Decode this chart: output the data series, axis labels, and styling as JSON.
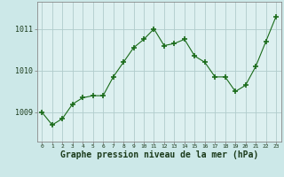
{
  "x": [
    0,
    1,
    2,
    3,
    4,
    5,
    6,
    7,
    8,
    9,
    10,
    11,
    12,
    13,
    14,
    15,
    16,
    17,
    18,
    19,
    20,
    21,
    22,
    23
  ],
  "y": [
    1009.0,
    1008.7,
    1008.85,
    1009.2,
    1009.35,
    1009.4,
    1009.4,
    1009.85,
    1010.2,
    1010.55,
    1010.75,
    1011.0,
    1010.6,
    1010.65,
    1010.75,
    1010.35,
    1010.2,
    1009.85,
    1009.85,
    1009.5,
    1009.65,
    1010.1,
    1010.7,
    1011.3
  ],
  "line_color": "#1a6b1a",
  "marker": "+",
  "marker_size": 4,
  "marker_lw": 1.2,
  "bg_color": "#cce8e8",
  "plot_bg_color": "#ddf0f0",
  "grid_color": "#b0cccc",
  "ylabel_ticks": [
    1009,
    1010,
    1011
  ],
  "xlabel_label": "Graphe pression niveau de la mer (hPa)",
  "xlabel_fontsize": 7.0,
  "ylim": [
    1008.3,
    1011.65
  ],
  "xlim": [
    -0.5,
    23.5
  ]
}
